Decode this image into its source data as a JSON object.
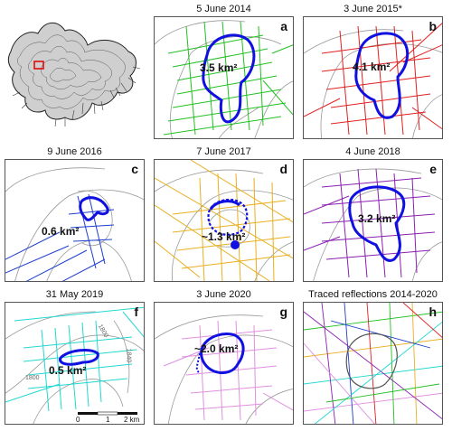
{
  "panels": [
    {
      "id": "a",
      "date": "5 June 2014",
      "letter": "a",
      "area": "3.5 km²",
      "color": "#22c022"
    },
    {
      "id": "b",
      "date": "3 June 2015*",
      "letter": "b",
      "area": "4.1 km²",
      "color": "#e02020"
    },
    {
      "id": "c",
      "date": "9 June 2016",
      "letter": "c",
      "area": "0.6 km²",
      "color": "#1e3fcf"
    },
    {
      "id": "d",
      "date": "7 June 2017",
      "letter": "d",
      "area": "~1.3 km²",
      "color": "#e8b020"
    },
    {
      "id": "e",
      "date": "4 June 2018",
      "letter": "e",
      "area": "3.2 km²",
      "color": "#8a1fb0"
    },
    {
      "id": "f",
      "date": "31 May 2019",
      "letter": "f",
      "area": "0.5 km²",
      "color": "#20d8d0"
    },
    {
      "id": "g",
      "date": "3 June 2020",
      "letter": "g",
      "area": "~2.0 km²",
      "color": "#e090e0"
    },
    {
      "id": "h",
      "date": "Traced reflections 2014-2020",
      "letter": "h",
      "area": "",
      "color": "#888888"
    }
  ],
  "contour_labels": {
    "c1": "1800",
    "c2": "1840",
    "c3": "1800"
  },
  "scale_bar": {
    "zero": "0",
    "mid": "1",
    "end": "2 km"
  },
  "outline_color": "#1010e0"
}
